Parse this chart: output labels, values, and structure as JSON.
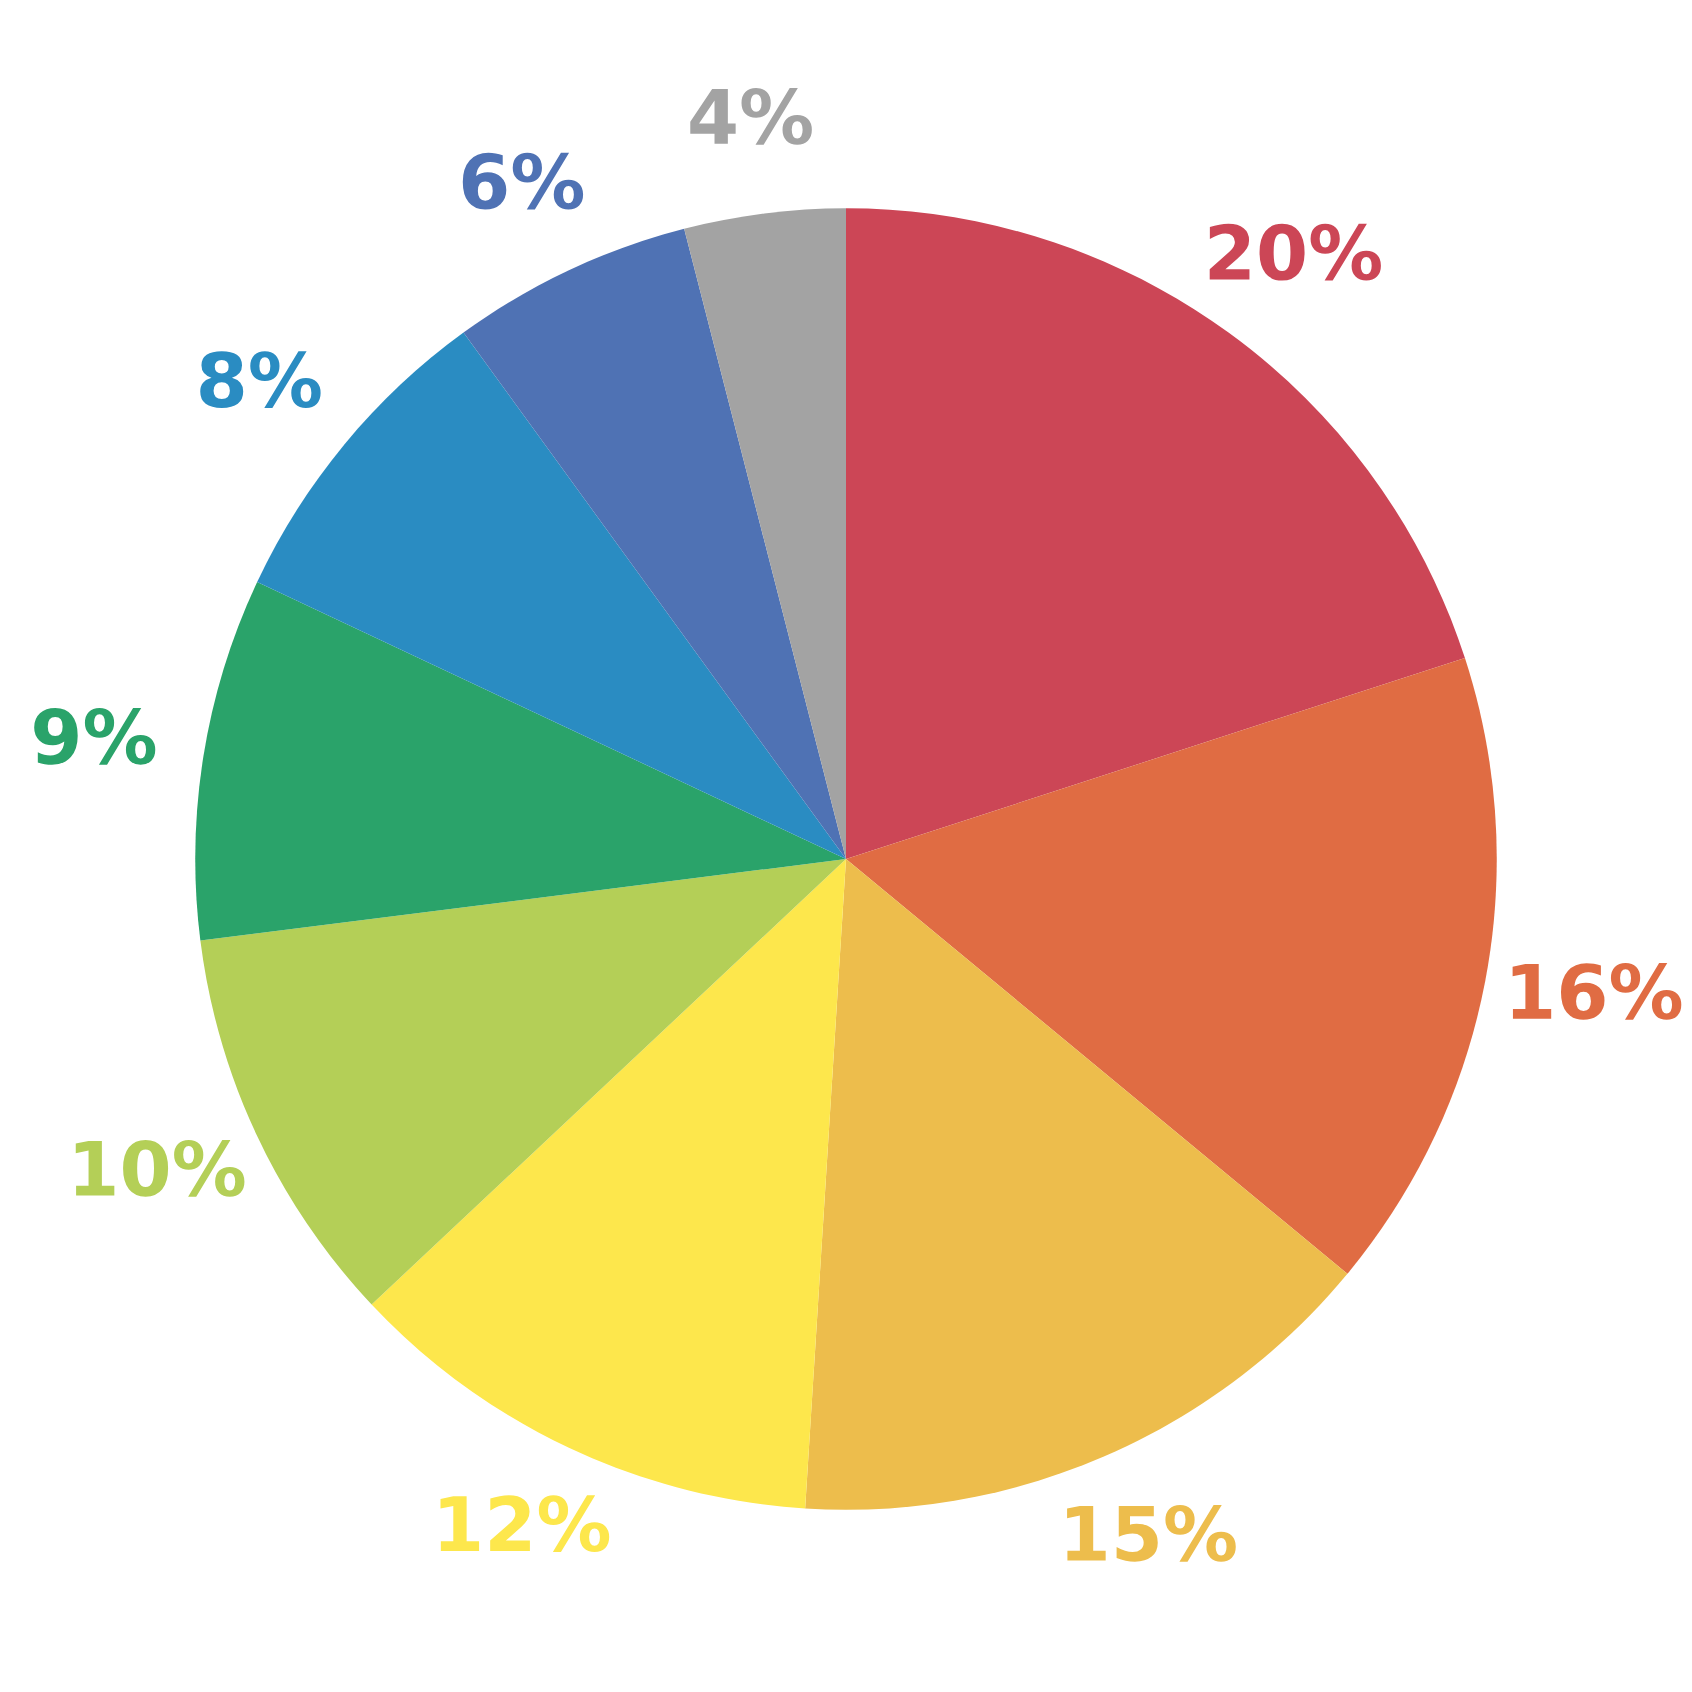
{
  "chart_data": {
    "type": "pie",
    "categories": [
      null,
      null,
      null,
      null,
      null,
      null,
      null,
      null,
      null
    ],
    "values": [
      20,
      16,
      15,
      12,
      10,
      9,
      8,
      6,
      4
    ],
    "colors": [
      "#cc4656",
      "#e06c43",
      "#edbd4c",
      "#fde74c",
      "#b4cf57",
      "#2aa36a",
      "#2a8cc2",
      "#4f72b4",
      "#a3a3a3"
    ],
    "value_labels": [
      "20%",
      "16%",
      "15%",
      "12%",
      "10%",
      "9%",
      "8%",
      "6%",
      "4%"
    ]
  }
}
